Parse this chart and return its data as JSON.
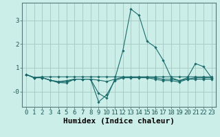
{
  "xlabel": "Humidex (Indice chaleur)",
  "bg_color": "#cceee8",
  "grid_color": "#aaccc8",
  "line_color": "#1a6b6b",
  "xlim": [
    -0.5,
    23.5
  ],
  "ylim": [
    -0.65,
    3.75
  ],
  "yticks": [
    0,
    1,
    2,
    3
  ],
  "ytick_labels": [
    "-0",
    "1",
    "2",
    "3"
  ],
  "xticks": [
    0,
    1,
    2,
    3,
    4,
    5,
    6,
    7,
    8,
    9,
    10,
    11,
    12,
    13,
    14,
    15,
    16,
    17,
    18,
    19,
    20,
    21,
    22,
    23
  ],
  "series": [
    [
      0.72,
      0.6,
      0.62,
      0.62,
      0.62,
      0.62,
      0.62,
      0.62,
      0.62,
      0.62,
      0.62,
      0.62,
      0.62,
      0.62,
      0.62,
      0.62,
      0.62,
      0.62,
      0.62,
      0.62,
      0.62,
      0.62,
      0.62,
      0.62
    ],
    [
      0.72,
      0.58,
      0.58,
      0.48,
      0.42,
      0.46,
      0.52,
      0.52,
      0.52,
      0.48,
      0.42,
      0.52,
      0.6,
      0.6,
      0.6,
      0.6,
      0.58,
      0.52,
      0.52,
      0.46,
      0.52,
      0.52,
      0.52,
      0.52
    ],
    [
      0.72,
      0.58,
      0.58,
      0.48,
      0.38,
      0.42,
      0.52,
      0.52,
      0.52,
      -0.08,
      -0.28,
      0.52,
      1.72,
      3.48,
      3.22,
      2.12,
      1.88,
      1.32,
      0.58,
      0.46,
      0.58,
      1.18,
      1.05,
      0.58
    ],
    [
      0.72,
      0.58,
      0.58,
      0.48,
      0.38,
      0.36,
      0.52,
      0.52,
      0.52,
      -0.44,
      -0.14,
      0.46,
      0.58,
      0.58,
      0.58,
      0.58,
      0.52,
      0.46,
      0.46,
      0.4,
      0.52,
      0.58,
      0.58,
      0.58
    ]
  ],
  "font_family": "monospace",
  "tick_fontsize": 6.5,
  "label_fontsize": 8.0
}
